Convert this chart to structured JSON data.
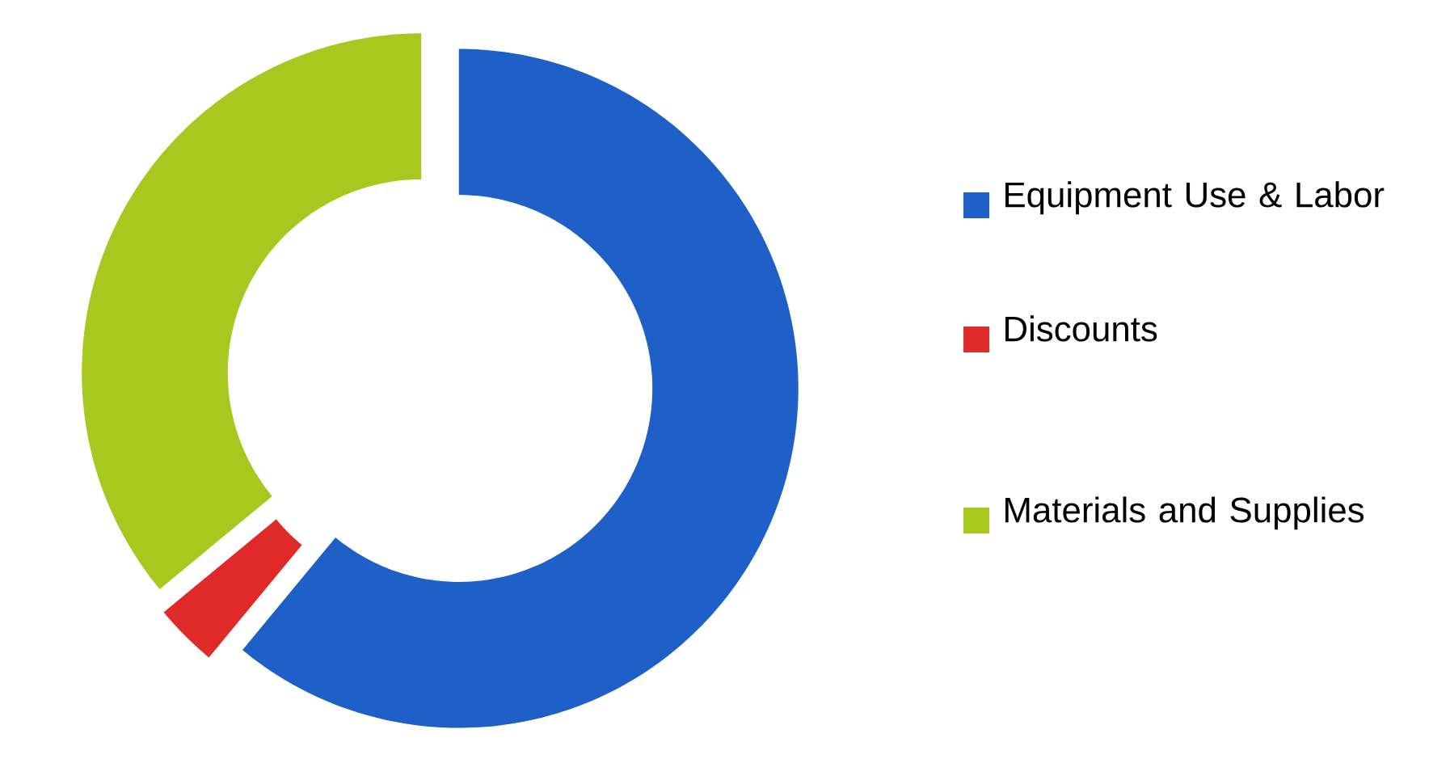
{
  "chart_data": {
    "type": "donut",
    "categories": [
      "Equipment Use & Labor",
      "Discounts",
      "Materials and Supplies"
    ],
    "values": [
      61,
      3,
      36
    ],
    "colors": [
      "#1f5fc8",
      "#e02a2a",
      "#a8c820"
    ],
    "legend": "right"
  }
}
